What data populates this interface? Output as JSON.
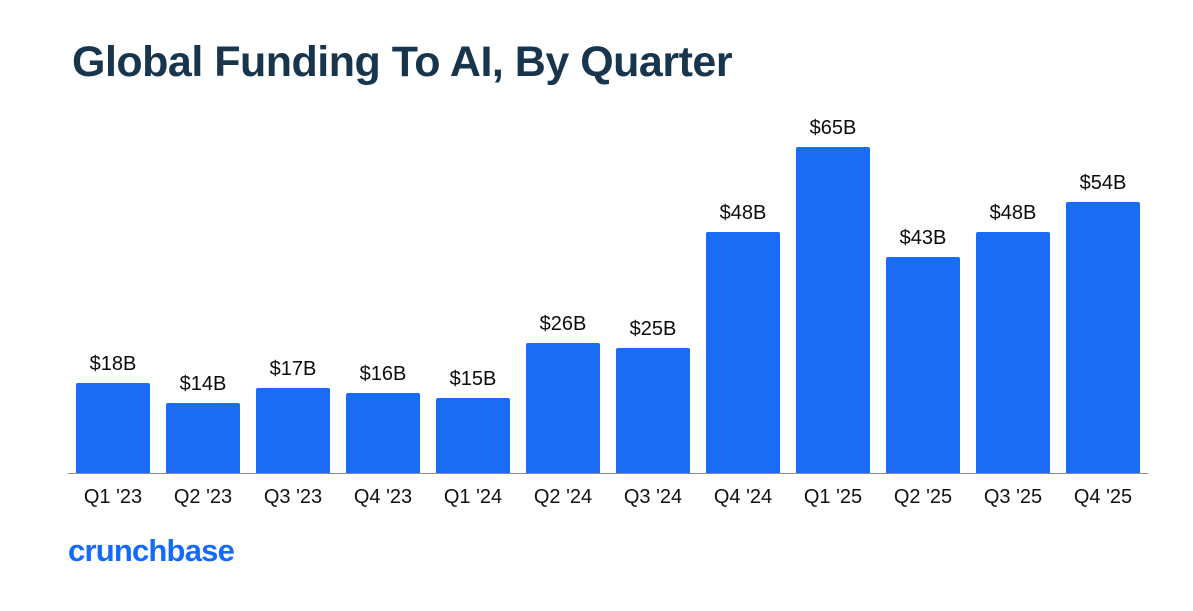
{
  "chart_data": {
    "type": "bar",
    "title": "Global Funding To AI, By Quarter",
    "categories": [
      "Q1 '23",
      "Q2 '23",
      "Q3 '23",
      "Q4 '23",
      "Q1 '24",
      "Q2 '24",
      "Q3 '24",
      "Q4 '24",
      "Q1 '25",
      "Q2 '25",
      "Q3 '25",
      "Q4 '25"
    ],
    "values": [
      18,
      14,
      17,
      16,
      15,
      26,
      25,
      48,
      65,
      43,
      48,
      54
    ],
    "value_labels": [
      "$18B",
      "$14B",
      "$17B",
      "$16B",
      "$15B",
      "$26B",
      "$25B",
      "$48B",
      "$65B",
      "$43B",
      "$48B",
      "$54B"
    ],
    "xlabel": "",
    "ylabel": "",
    "ylim": [
      0,
      65
    ],
    "grid": false,
    "legend": false,
    "bar_color": "#1a6cf5",
    "title_color": "#17364e",
    "axis_line_color": "#8a8a8a"
  },
  "footer": {
    "brand": "crunchbase",
    "brand_color": "#146aff"
  }
}
